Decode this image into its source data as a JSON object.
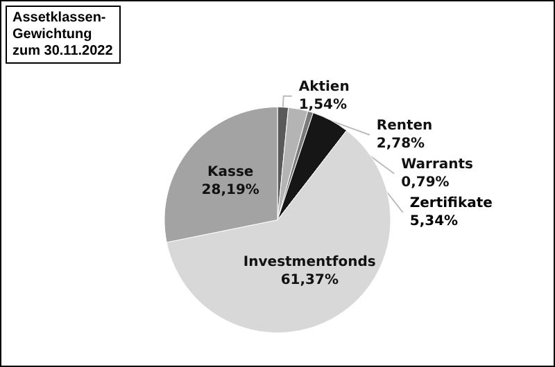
{
  "chart_data": {
    "type": "pie",
    "title": "Assetklassen-\nGewichtung\nzum 30.11.2022",
    "categories": [
      "Aktien",
      "Renten",
      "Warrants",
      "Zertifikate",
      "Investmentfonds",
      "Kasse"
    ],
    "values": [
      1.54,
      2.78,
      0.79,
      5.34,
      61.37,
      28.19
    ],
    "colors": [
      "#5a5a5a",
      "#b4b4b4",
      "#7a7a7a",
      "#161616",
      "#d8d8d8",
      "#a3a3a3"
    ],
    "value_labels": [
      "1,54%",
      "2,78%",
      "0,79%",
      "5,34%",
      "61,37%",
      "28,19%"
    ]
  }
}
